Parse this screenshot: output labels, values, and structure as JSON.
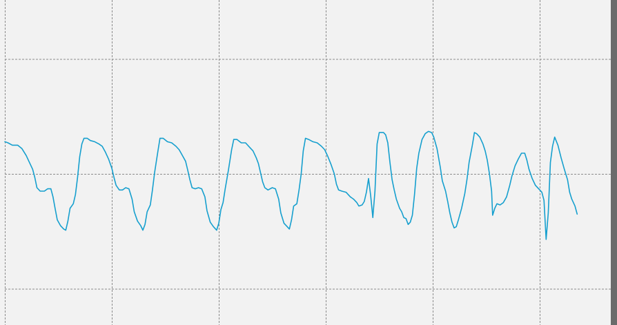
{
  "chart_data": {
    "type": "line",
    "title": "",
    "xlabel": "",
    "ylabel": "",
    "xlim": [
      0,
      5.7
    ],
    "ylim": [
      -1.3,
      1.5
    ],
    "grid": true,
    "x_gridlines": [
      0,
      1,
      2,
      3,
      4,
      5
    ],
    "y_gridlines": [
      -1,
      0,
      1
    ],
    "line_color": "#159fce",
    "grid_color": "#8a8a8a",
    "background": "#f2f2f2",
    "series": [
      {
        "name": "",
        "points": [
          [
            0.0,
            0.28
          ],
          [
            0.03,
            0.27
          ],
          [
            0.07,
            0.25
          ],
          [
            0.12,
            0.25
          ],
          [
            0.16,
            0.22
          ],
          [
            0.2,
            0.16
          ],
          [
            0.23,
            0.1
          ],
          [
            0.26,
            0.04
          ],
          [
            0.28,
            -0.03
          ],
          [
            0.3,
            -0.12
          ],
          [
            0.33,
            -0.15
          ],
          [
            0.37,
            -0.15
          ],
          [
            0.4,
            -0.13
          ],
          [
            0.43,
            -0.13
          ],
          [
            0.45,
            -0.2
          ],
          [
            0.47,
            -0.3
          ],
          [
            0.49,
            -0.4
          ],
          [
            0.52,
            -0.45
          ],
          [
            0.55,
            -0.48
          ],
          [
            0.57,
            -0.49
          ],
          [
            0.59,
            -0.41
          ],
          [
            0.61,
            -0.3
          ],
          [
            0.64,
            -0.26
          ],
          [
            0.66,
            -0.18
          ],
          [
            0.68,
            -0.03
          ],
          [
            0.7,
            0.15
          ],
          [
            0.72,
            0.26
          ],
          [
            0.74,
            0.31
          ],
          [
            0.77,
            0.31
          ],
          [
            0.8,
            0.29
          ],
          [
            0.84,
            0.28
          ],
          [
            0.88,
            0.26
          ],
          [
            0.91,
            0.24
          ],
          [
            0.94,
            0.19
          ],
          [
            0.97,
            0.13
          ],
          [
            1.0,
            0.05
          ],
          [
            1.02,
            -0.03
          ],
          [
            1.04,
            -0.1
          ],
          [
            1.07,
            -0.14
          ],
          [
            1.1,
            -0.14
          ],
          [
            1.13,
            -0.12
          ],
          [
            1.16,
            -0.13
          ],
          [
            1.19,
            -0.22
          ],
          [
            1.21,
            -0.33
          ],
          [
            1.24,
            -0.41
          ],
          [
            1.27,
            -0.45
          ],
          [
            1.29,
            -0.49
          ],
          [
            1.31,
            -0.44
          ],
          [
            1.33,
            -0.33
          ],
          [
            1.36,
            -0.27
          ],
          [
            1.38,
            -0.14
          ],
          [
            1.4,
            0.01
          ],
          [
            1.43,
            0.19
          ],
          [
            1.45,
            0.31
          ],
          [
            1.48,
            0.31
          ],
          [
            1.52,
            0.28
          ],
          [
            1.56,
            0.27
          ],
          [
            1.6,
            0.24
          ],
          [
            1.63,
            0.21
          ],
          [
            1.66,
            0.16
          ],
          [
            1.69,
            0.11
          ],
          [
            1.71,
            0.03
          ],
          [
            1.73,
            -0.05
          ],
          [
            1.75,
            -0.12
          ],
          [
            1.78,
            -0.13
          ],
          [
            1.81,
            -0.12
          ],
          [
            1.84,
            -0.13
          ],
          [
            1.87,
            -0.2
          ],
          [
            1.89,
            -0.32
          ],
          [
            1.92,
            -0.42
          ],
          [
            1.95,
            -0.46
          ],
          [
            1.98,
            -0.49
          ],
          [
            2.0,
            -0.43
          ],
          [
            2.02,
            -0.31
          ],
          [
            2.04,
            -0.25
          ],
          [
            2.06,
            -0.13
          ],
          [
            2.09,
            0.03
          ],
          [
            2.12,
            0.21
          ],
          [
            2.14,
            0.3
          ],
          [
            2.17,
            0.3
          ],
          [
            2.21,
            0.27
          ],
          [
            2.25,
            0.27
          ],
          [
            2.29,
            0.23
          ],
          [
            2.32,
            0.2
          ],
          [
            2.35,
            0.14
          ],
          [
            2.37,
            0.09
          ],
          [
            2.39,
            0.01
          ],
          [
            2.41,
            -0.07
          ],
          [
            2.43,
            -0.12
          ],
          [
            2.46,
            -0.14
          ],
          [
            2.5,
            -0.12
          ],
          [
            2.53,
            -0.13
          ],
          [
            2.56,
            -0.22
          ],
          [
            2.58,
            -0.34
          ],
          [
            2.61,
            -0.43
          ],
          [
            2.64,
            -0.46
          ],
          [
            2.66,
            -0.48
          ],
          [
            2.68,
            -0.4
          ],
          [
            2.7,
            -0.28
          ],
          [
            2.73,
            -0.26
          ],
          [
            2.75,
            -0.14
          ],
          [
            2.77,
            0.0
          ],
          [
            2.79,
            0.2
          ],
          [
            2.81,
            0.31
          ],
          [
            2.84,
            0.3
          ],
          [
            2.88,
            0.28
          ],
          [
            2.92,
            0.27
          ],
          [
            2.96,
            0.24
          ],
          [
            2.99,
            0.21
          ],
          [
            3.02,
            0.15
          ],
          [
            3.05,
            0.08
          ],
          [
            3.08,
            0.0
          ],
          [
            3.1,
            -0.09
          ],
          [
            3.12,
            -0.14
          ],
          [
            3.15,
            -0.15
          ],
          [
            3.19,
            -0.16
          ],
          [
            3.23,
            -0.2
          ],
          [
            3.26,
            -0.22
          ],
          [
            3.29,
            -0.25
          ],
          [
            3.31,
            -0.28
          ],
          [
            3.34,
            -0.27
          ],
          [
            3.36,
            -0.24
          ],
          [
            3.38,
            -0.16
          ],
          [
            3.4,
            -0.04
          ],
          [
            3.42,
            -0.19
          ],
          [
            3.44,
            -0.38
          ],
          [
            3.46,
            -0.15
          ],
          [
            3.48,
            0.26
          ],
          [
            3.5,
            0.36
          ],
          [
            3.52,
            0.36
          ],
          [
            3.54,
            0.36
          ],
          [
            3.56,
            0.34
          ],
          [
            3.58,
            0.27
          ],
          [
            3.6,
            0.1
          ],
          [
            3.62,
            -0.05
          ],
          [
            3.64,
            -0.14
          ],
          [
            3.66,
            -0.22
          ],
          [
            3.69,
            -0.3
          ],
          [
            3.71,
            -0.33
          ],
          [
            3.73,
            -0.38
          ],
          [
            3.75,
            -0.39
          ],
          [
            3.77,
            -0.44
          ],
          [
            3.79,
            -0.42
          ],
          [
            3.81,
            -0.36
          ],
          [
            3.83,
            -0.18
          ],
          [
            3.85,
            0.05
          ],
          [
            3.87,
            0.18
          ],
          [
            3.9,
            0.3
          ],
          [
            3.93,
            0.35
          ],
          [
            3.96,
            0.37
          ],
          [
            3.99,
            0.36
          ],
          [
            4.01,
            0.32
          ],
          [
            4.04,
            0.22
          ],
          [
            4.07,
            0.06
          ],
          [
            4.09,
            -0.06
          ],
          [
            4.12,
            -0.15
          ],
          [
            4.14,
            -0.24
          ],
          [
            4.16,
            -0.34
          ],
          [
            4.18,
            -0.42
          ],
          [
            4.2,
            -0.47
          ],
          [
            4.22,
            -0.46
          ],
          [
            4.24,
            -0.4
          ],
          [
            4.27,
            -0.3
          ],
          [
            4.3,
            -0.17
          ],
          [
            4.32,
            -0.05
          ],
          [
            4.34,
            0.1
          ],
          [
            4.37,
            0.25
          ],
          [
            4.39,
            0.36
          ],
          [
            4.41,
            0.35
          ],
          [
            4.44,
            0.32
          ],
          [
            4.47,
            0.26
          ],
          [
            4.49,
            0.2
          ],
          [
            4.51,
            0.12
          ],
          [
            4.53,
            0.0
          ],
          [
            4.55,
            -0.15
          ],
          [
            4.56,
            -0.36
          ],
          [
            4.58,
            -0.3
          ],
          [
            4.6,
            -0.26
          ],
          [
            4.63,
            -0.27
          ],
          [
            4.66,
            -0.25
          ],
          [
            4.69,
            -0.2
          ],
          [
            4.72,
            -0.1
          ],
          [
            4.74,
            -0.02
          ],
          [
            4.77,
            0.07
          ],
          [
            4.8,
            0.13
          ],
          [
            4.83,
            0.18
          ],
          [
            4.86,
            0.18
          ],
          [
            4.88,
            0.12
          ],
          [
            4.9,
            0.04
          ],
          [
            4.93,
            -0.04
          ],
          [
            4.96,
            -0.1
          ],
          [
            4.99,
            -0.13
          ],
          [
            5.02,
            -0.16
          ],
          [
            5.04,
            -0.23
          ],
          [
            5.06,
            -0.57
          ],
          [
            5.08,
            -0.34
          ],
          [
            5.1,
            0.1
          ],
          [
            5.12,
            0.24
          ],
          [
            5.14,
            0.32
          ],
          [
            5.17,
            0.25
          ],
          [
            5.2,
            0.14
          ],
          [
            5.23,
            0.04
          ],
          [
            5.26,
            -0.05
          ],
          [
            5.28,
            -0.16
          ],
          [
            5.3,
            -0.22
          ],
          [
            5.33,
            -0.28
          ],
          [
            5.35,
            -0.35
          ]
        ]
      }
    ]
  }
}
